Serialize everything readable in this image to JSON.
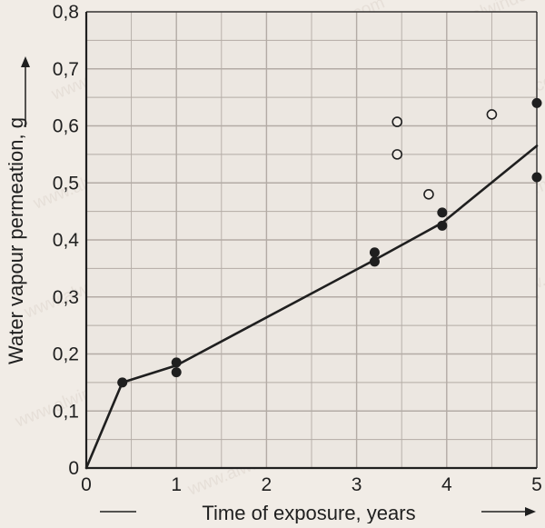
{
  "watermark_text": "www.alwindoor.com",
  "chart_data": {
    "type": "scatter",
    "xlabel": "Time of exposure, years",
    "ylabel": "Water vapour permeation, g",
    "xlim": [
      0,
      5
    ],
    "ylim": [
      0,
      0.8
    ],
    "x_ticks": [
      "0",
      "1",
      "2",
      "3",
      "4",
      "5"
    ],
    "y_ticks": [
      "0",
      "0,1",
      "0,2",
      "0,3",
      "0,4",
      "0,5",
      "0,6",
      "0,7",
      "0,8"
    ],
    "grid": true,
    "colors": {
      "background": "#f1ece6",
      "grid": "#b3aba5",
      "ink": "#1f1f1f"
    },
    "series": [
      {
        "marker": "filled-circle",
        "points": [
          {
            "x": 0.4,
            "y": 0.15
          },
          {
            "x": 1.0,
            "y": 0.185
          },
          {
            "x": 1.0,
            "y": 0.168
          },
          {
            "x": 3.2,
            "y": 0.378
          },
          {
            "x": 3.2,
            "y": 0.362
          },
          {
            "x": 3.95,
            "y": 0.448
          },
          {
            "x": 3.95,
            "y": 0.425
          },
          {
            "x": 5.0,
            "y": 0.64
          },
          {
            "x": 5.0,
            "y": 0.51
          }
        ]
      },
      {
        "marker": "open-circle",
        "points": [
          {
            "x": 3.45,
            "y": 0.607
          },
          {
            "x": 3.45,
            "y": 0.55
          },
          {
            "x": 3.8,
            "y": 0.48
          },
          {
            "x": 4.5,
            "y": 0.62
          }
        ]
      },
      {
        "marker": "line",
        "points": [
          {
            "x": 0,
            "y": 0
          },
          {
            "x": 0.4,
            "y": 0.15
          },
          {
            "x": 1.0,
            "y": 0.18
          },
          {
            "x": 3.2,
            "y": 0.365
          },
          {
            "x": 3.95,
            "y": 0.43
          },
          {
            "x": 5.0,
            "y": 0.565
          }
        ]
      }
    ]
  }
}
